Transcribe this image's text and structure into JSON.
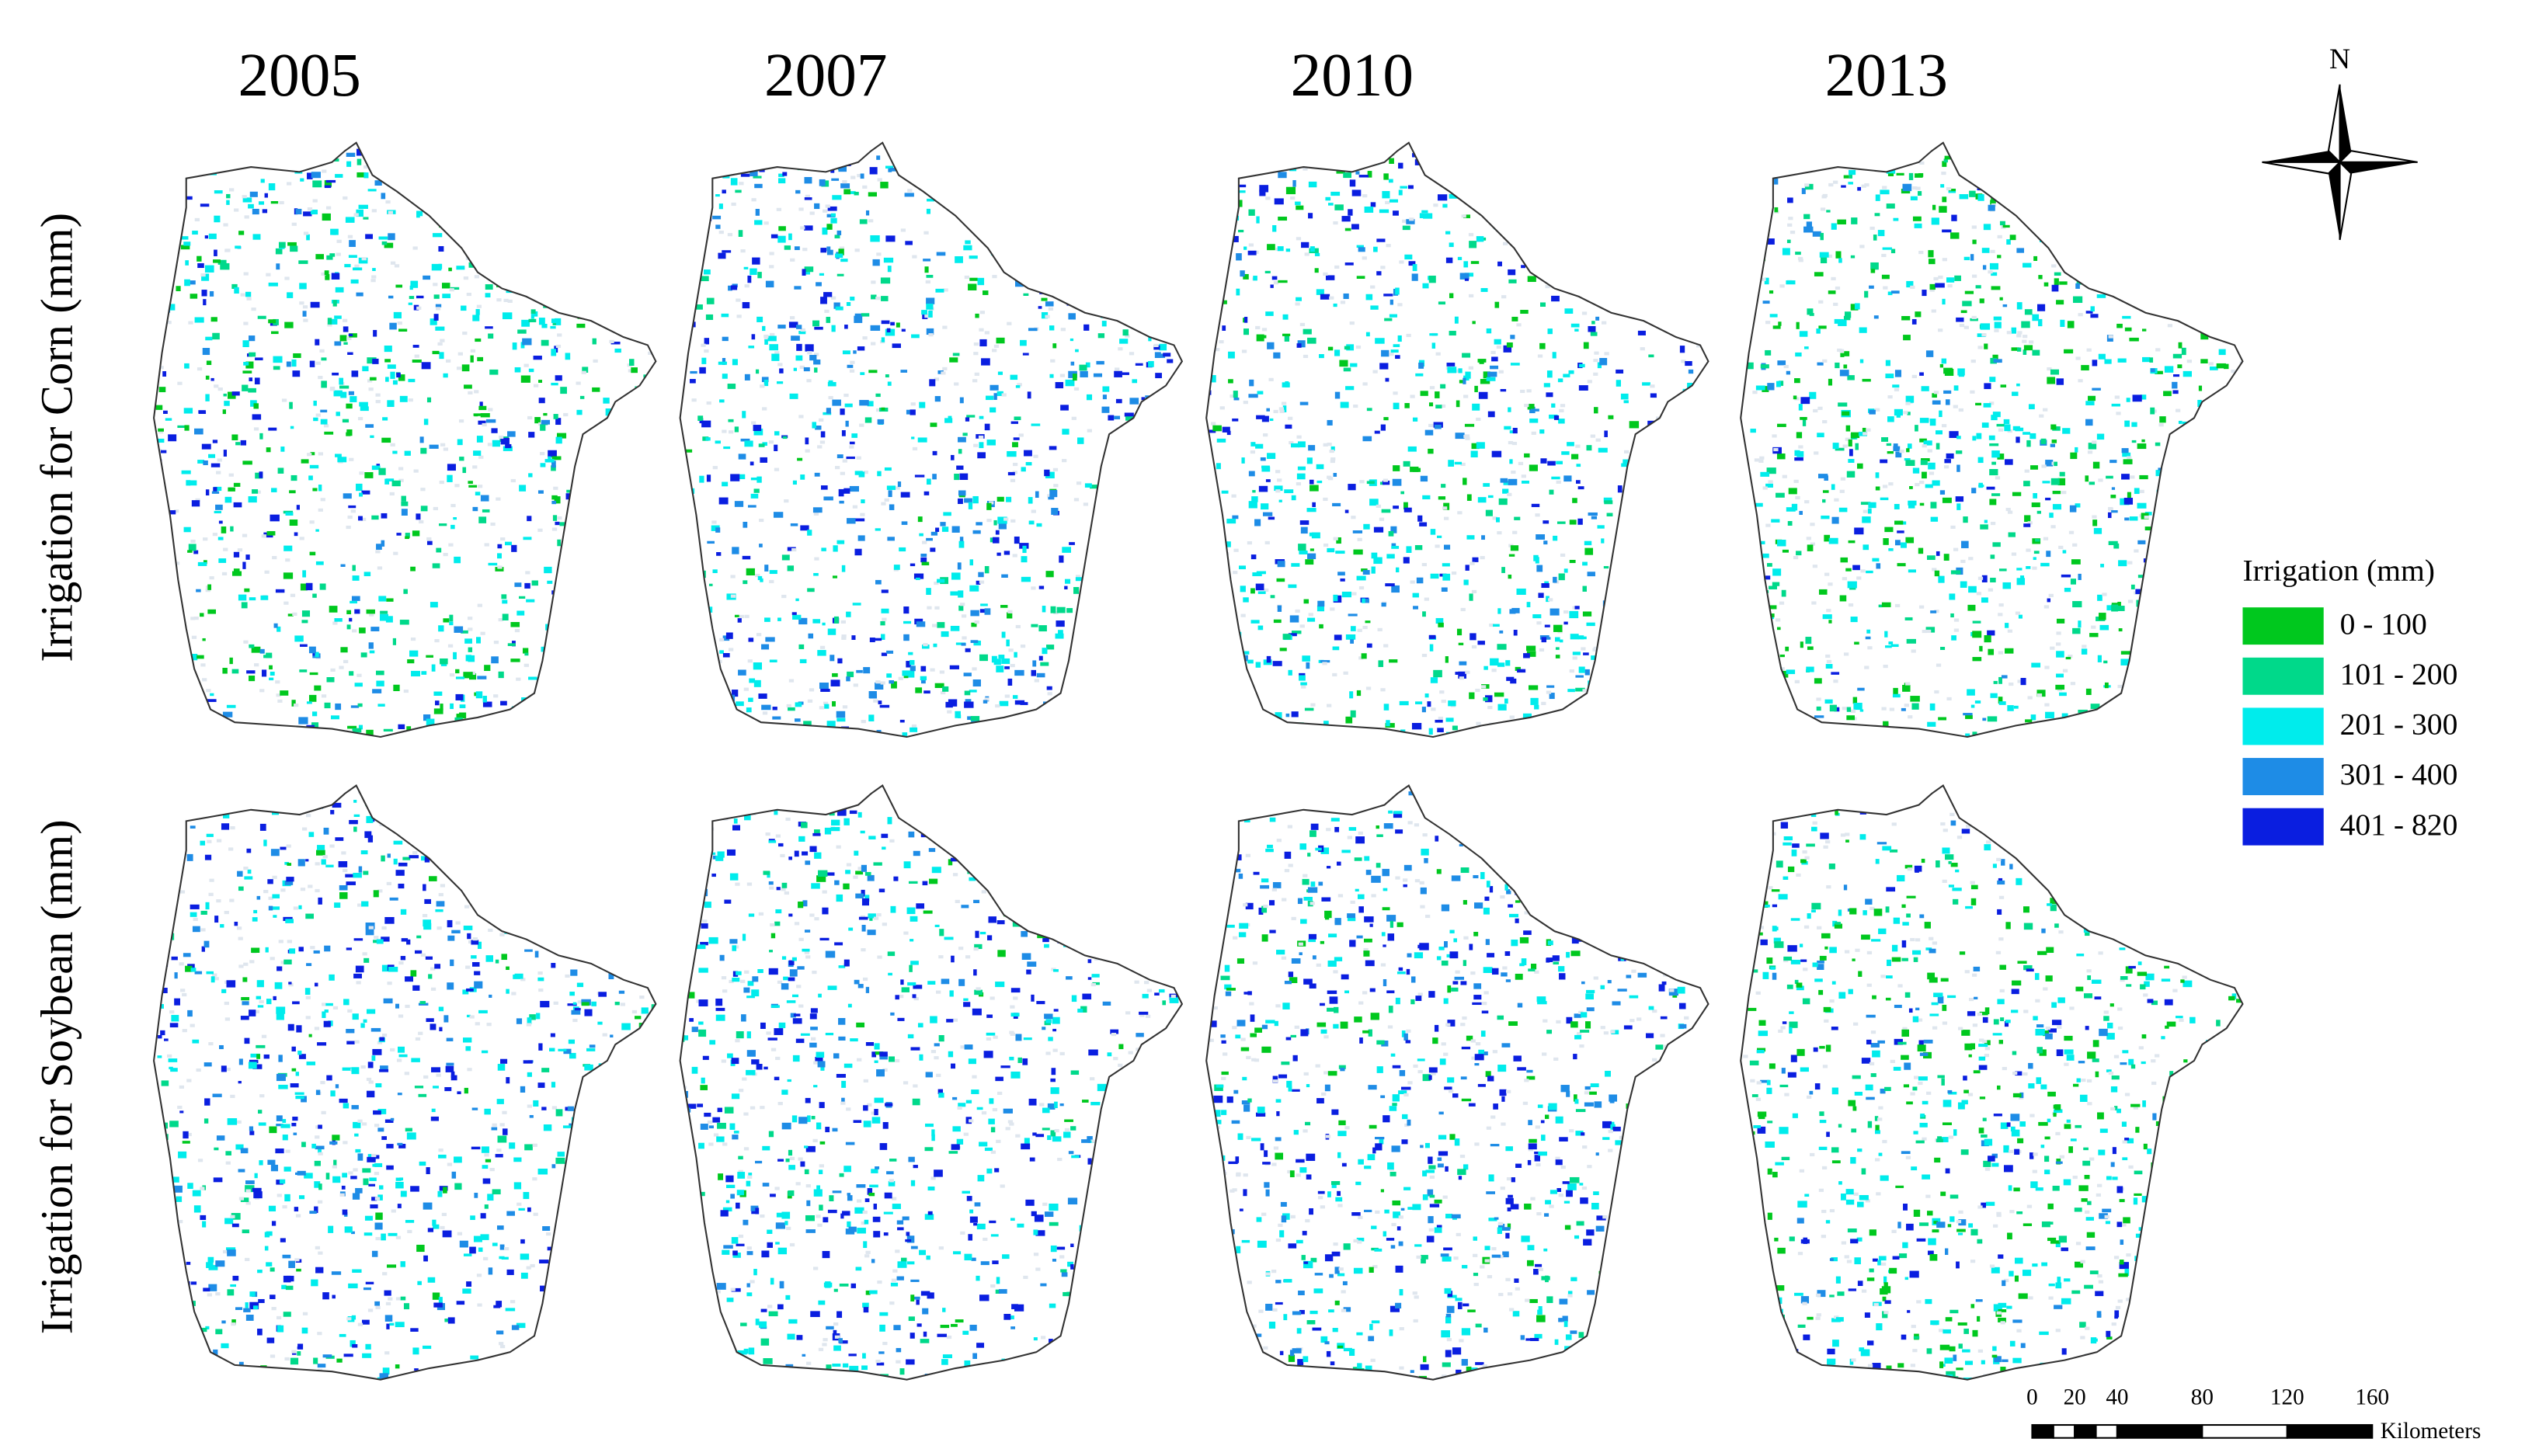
{
  "years": [
    "2005",
    "2007",
    "2010",
    "2013"
  ],
  "rows": [
    "Irrigation  for Corn (mm)",
    "Irrigation  for Soybean (mm)"
  ],
  "legend": {
    "title": "Irrigation (mm)",
    "items": [
      {
        "label": "0 - 100",
        "color": "#00c81e"
      },
      {
        "label": "101 - 200",
        "color": "#00d98a"
      },
      {
        "label": "201 - 300",
        "color": "#00ecec"
      },
      {
        "label": "301 - 400",
        "color": "#1e8ce6"
      },
      {
        "label": "401 - 820",
        "color": "#0a1ee0"
      }
    ]
  },
  "north": "N",
  "scale_bar": {
    "ticks": [
      0,
      20,
      40,
      80,
      120,
      160
    ],
    "unit": "Kilometers"
  }
}
